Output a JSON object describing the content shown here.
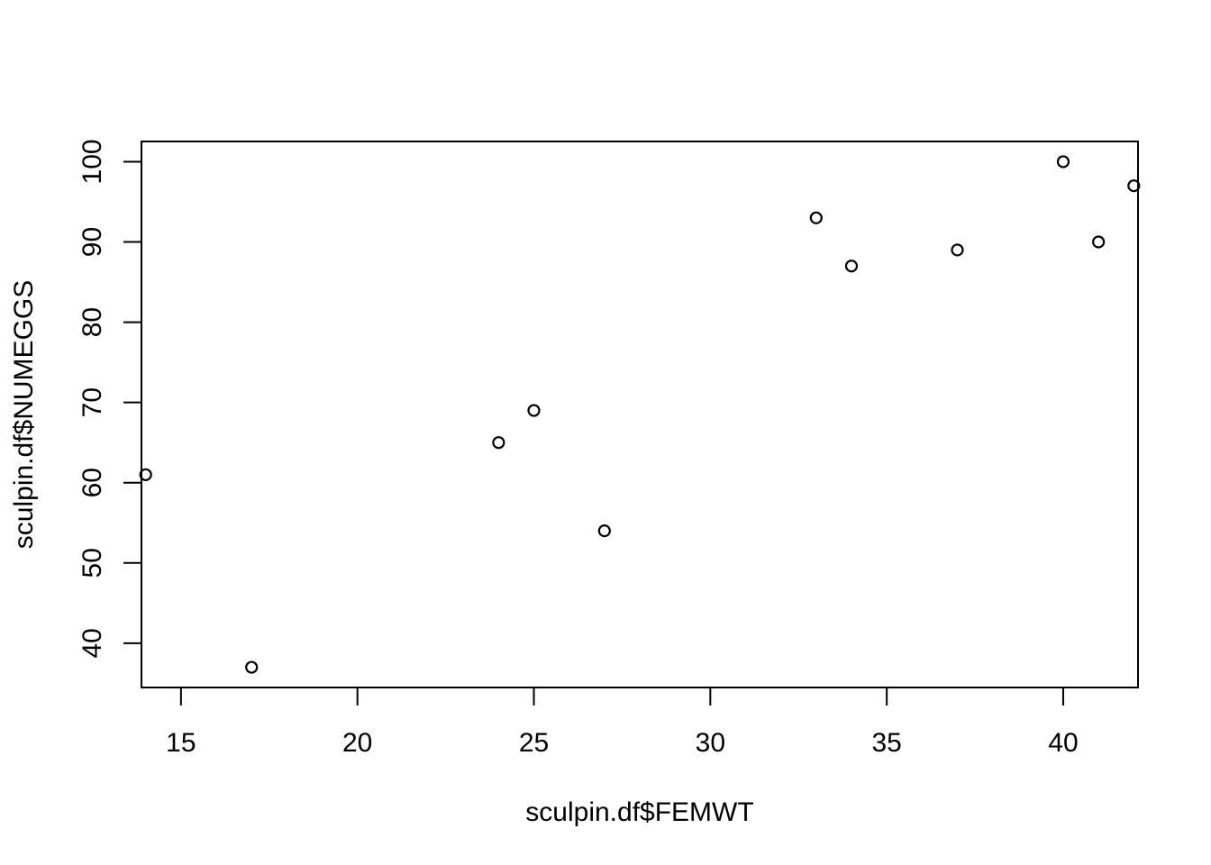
{
  "chart_data": {
    "type": "scatter",
    "title": "",
    "xlabel": "sculpin.df$FEMWT",
    "ylabel": "sculpin.df$NUMEGGS",
    "xlim": [
      13.88,
      42.12
    ],
    "ylim": [
      34.48,
      102.52
    ],
    "xticks": [
      15,
      20,
      25,
      30,
      35,
      40
    ],
    "yticks": [
      40,
      50,
      60,
      70,
      80,
      90,
      100
    ],
    "grid": false,
    "legend": "none",
    "marker": "open-circle",
    "color": "#000000",
    "points": [
      {
        "x": 14,
        "y": 61
      },
      {
        "x": 17,
        "y": 37
      },
      {
        "x": 24,
        "y": 65
      },
      {
        "x": 25,
        "y": 69
      },
      {
        "x": 27,
        "y": 54
      },
      {
        "x": 33,
        "y": 93
      },
      {
        "x": 34,
        "y": 87
      },
      {
        "x": 37,
        "y": 89
      },
      {
        "x": 40,
        "y": 100
      },
      {
        "x": 41,
        "y": 90
      },
      {
        "x": 42,
        "y": 97
      }
    ]
  }
}
